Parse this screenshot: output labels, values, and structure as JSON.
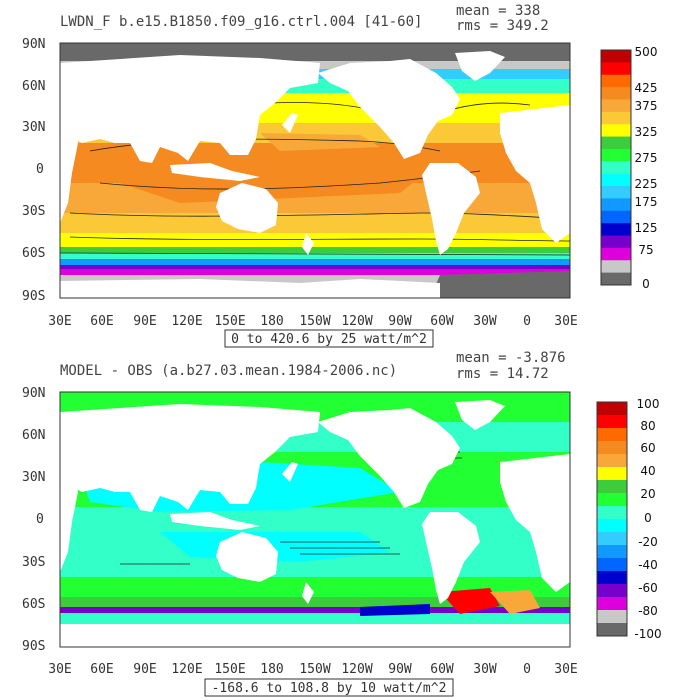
{
  "panel1": {
    "title": "LWDN_F b.e15.B1850.f09_g16.ctrl.004 [41-60]",
    "mean": "mean = 338",
    "rms": "rms = 349.2",
    "range": "0 to 420.6 by 25 watt/m^2",
    "lat_labels": [
      "90N",
      "60N",
      "30N",
      "0",
      "30S",
      "60S",
      "90S"
    ],
    "lon_labels": [
      "30E",
      "60E",
      "90E",
      "120E",
      "150E",
      "180",
      "150W",
      "120W",
      "90W",
      "60W",
      "30W",
      "0",
      "30E"
    ],
    "colorbar_labels": [
      "500",
      "425",
      "375",
      "325",
      "275",
      "225",
      "175",
      "125",
      "75",
      "0"
    ],
    "colorbar_colors": [
      "#c00000",
      "#ff0000",
      "#ff6a00",
      "#f58a20",
      "#f8a838",
      "#fbc838",
      "#ffff00",
      "#3ccc3c",
      "#22ff33",
      "#33ffc8",
      "#00ffff",
      "#33ccff",
      "#1199ff",
      "#0066ff",
      "#0000cc",
      "#7700cc",
      "#dd00dd",
      "#c8c8c8",
      "#696969"
    ]
  },
  "panel2": {
    "title": "MODEL - OBS (a.b27.03.mean.1984-2006.nc)",
    "mean": "mean = -3.876",
    "rms": "rms = 14.72",
    "range": "-168.6 to 108.8 by 10 watt/m^2",
    "lat_labels": [
      "90N",
      "60N",
      "30N",
      "0",
      "30S",
      "60S",
      "90S"
    ],
    "lon_labels": [
      "30E",
      "60E",
      "90E",
      "120E",
      "150E",
      "180",
      "150W",
      "120W",
      "90W",
      "60W",
      "30W",
      "0",
      "30E"
    ],
    "colorbar_labels": [
      "100",
      "80",
      "60",
      "40",
      "20",
      "0",
      "-20",
      "-40",
      "-60",
      "-80",
      "-100"
    ],
    "colorbar_colors": [
      "#c00000",
      "#ff0000",
      "#ff6a00",
      "#f58a20",
      "#f8a838",
      "#ffff00",
      "#3ccc3c",
      "#22ff33",
      "#33ffc8",
      "#00ffff",
      "#33ccff",
      "#1199ff",
      "#0066ff",
      "#0000cc",
      "#7700cc",
      "#dd00dd",
      "#c8c8c8",
      "#696969"
    ]
  }
}
